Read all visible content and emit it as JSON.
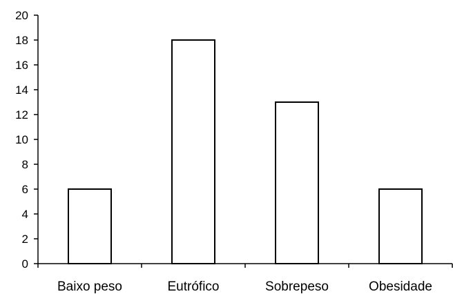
{
  "chart_data": {
    "type": "bar",
    "title": "",
    "xlabel": "",
    "ylabel": "",
    "categories": [
      "Baixo peso",
      "Eutrófico",
      "Sobrepeso",
      "Obesidade"
    ],
    "values": [
      6,
      18,
      13,
      6
    ],
    "ylim": [
      0,
      20
    ],
    "yticks": [
      "0",
      "2",
      "4",
      "6",
      "8",
      "10",
      "12",
      "14",
      "16",
      "18",
      "20"
    ],
    "grid": false,
    "legend": "none",
    "colors": {
      "bar_fill": "#ffffff",
      "bar_stroke": "#000000",
      "axis": "#000000",
      "text": "#000000"
    }
  }
}
